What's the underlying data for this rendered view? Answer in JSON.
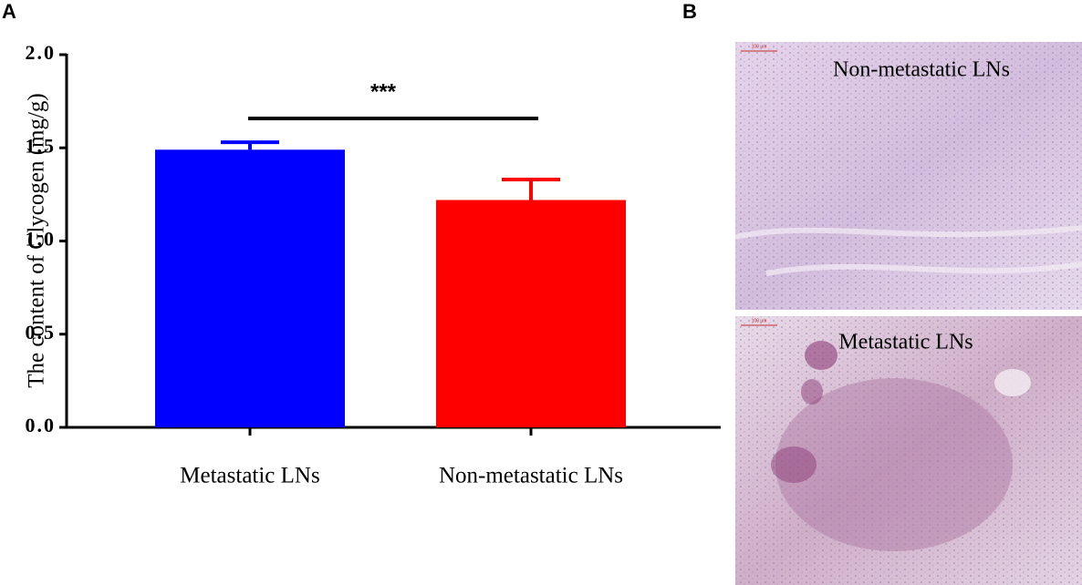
{
  "panel_labels": [
    "A",
    "B"
  ],
  "images": [
    {
      "label": "Non-metastatic LNs",
      "scale": "100 μm"
    },
    {
      "label": "Metastatic LNs",
      "scale": "100 μm"
    }
  ],
  "chart_data": {
    "type": "bar",
    "y_label": "The content of Glycogen (mg/g)",
    "categories": [
      "Metastatic LNs",
      "Non-metastatic LNs"
    ],
    "values": [
      1.49,
      1.22
    ],
    "errors": [
      0.04,
      0.11
    ],
    "colors": [
      "#0000ff",
      "#ff0000"
    ],
    "ylim": [
      0,
      2
    ],
    "yticks": [
      {
        "value": 0,
        "label": "0.0"
      },
      {
        "value": 0.5,
        "label": "0.5"
      },
      {
        "value": 1,
        "label": "1.0"
      },
      {
        "value": 1.5,
        "label": "1.5"
      },
      {
        "value": 2,
        "label": "2.0"
      }
    ],
    "annotation": "***"
  }
}
